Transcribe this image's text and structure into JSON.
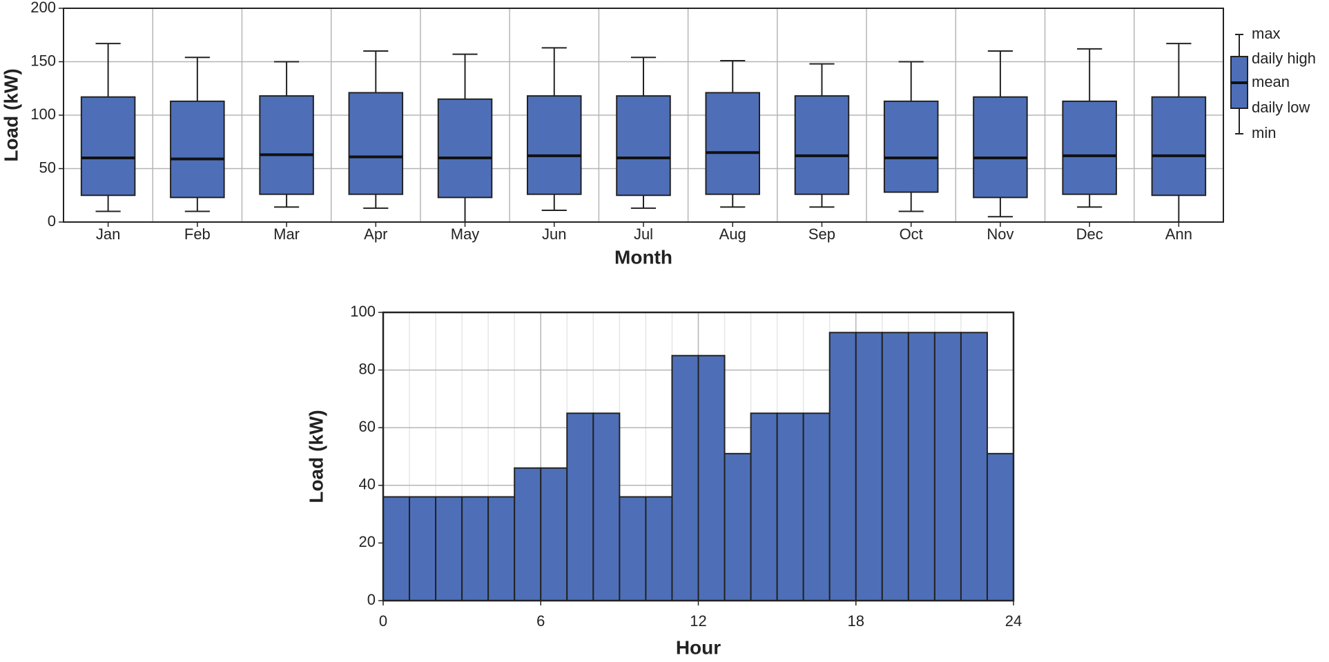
{
  "chart_data": [
    {
      "type": "boxplot",
      "x_label": "Month",
      "y_label": "Load (kW)",
      "categories": [
        "Jan",
        "Feb",
        "Mar",
        "Apr",
        "May",
        "Jun",
        "Jul",
        "Aug",
        "Sep",
        "Oct",
        "Nov",
        "Dec",
        "Ann"
      ],
      "max": [
        167,
        154,
        150,
        160,
        157,
        163,
        154,
        151,
        148,
        150,
        160,
        162,
        167
      ],
      "high": [
        117,
        113,
        118,
        121,
        115,
        118,
        118,
        121,
        118,
        113,
        117,
        113,
        117
      ],
      "mean": [
        60,
        59,
        63,
        61,
        60,
        62,
        60,
        65,
        62,
        60,
        60,
        62,
        62
      ],
      "low": [
        25,
        23,
        26,
        26,
        23,
        26,
        25,
        26,
        26,
        28,
        23,
        26,
        25
      ],
      "min": [
        10,
        10,
        14,
        13,
        0,
        11,
        13,
        14,
        14,
        10,
        5,
        14,
        0
      ],
      "legend_labels": [
        "max",
        "daily high",
        "mean",
        "daily low",
        "min"
      ],
      "color": "#4e6fb8",
      "ylim": [
        0,
        200
      ],
      "yticks": [
        0,
        50,
        100,
        150,
        200
      ],
      "grid": true
    },
    {
      "type": "histogram",
      "x_label": "Hour",
      "y_label": "Load (kW)",
      "bins": [
        0,
        1,
        2,
        3,
        4,
        5,
        6,
        7,
        8,
        9,
        10,
        11,
        12,
        13,
        14,
        15,
        16,
        17,
        18,
        19,
        20,
        21,
        22,
        23,
        24
      ],
      "values": [
        36,
        36,
        36,
        36,
        36,
        46,
        46,
        65,
        65,
        36,
        36,
        85,
        85,
        51,
        65,
        65,
        65,
        93,
        93,
        93,
        93,
        93,
        93,
        51
      ],
      "color": "#4e6fb8",
      "xlim": [
        0,
        24
      ],
      "xticks": [
        0,
        6,
        12,
        18,
        24
      ],
      "ylim": [
        0,
        100
      ],
      "yticks": [
        0,
        20,
        40,
        60,
        80,
        100
      ],
      "grid": true
    }
  ]
}
